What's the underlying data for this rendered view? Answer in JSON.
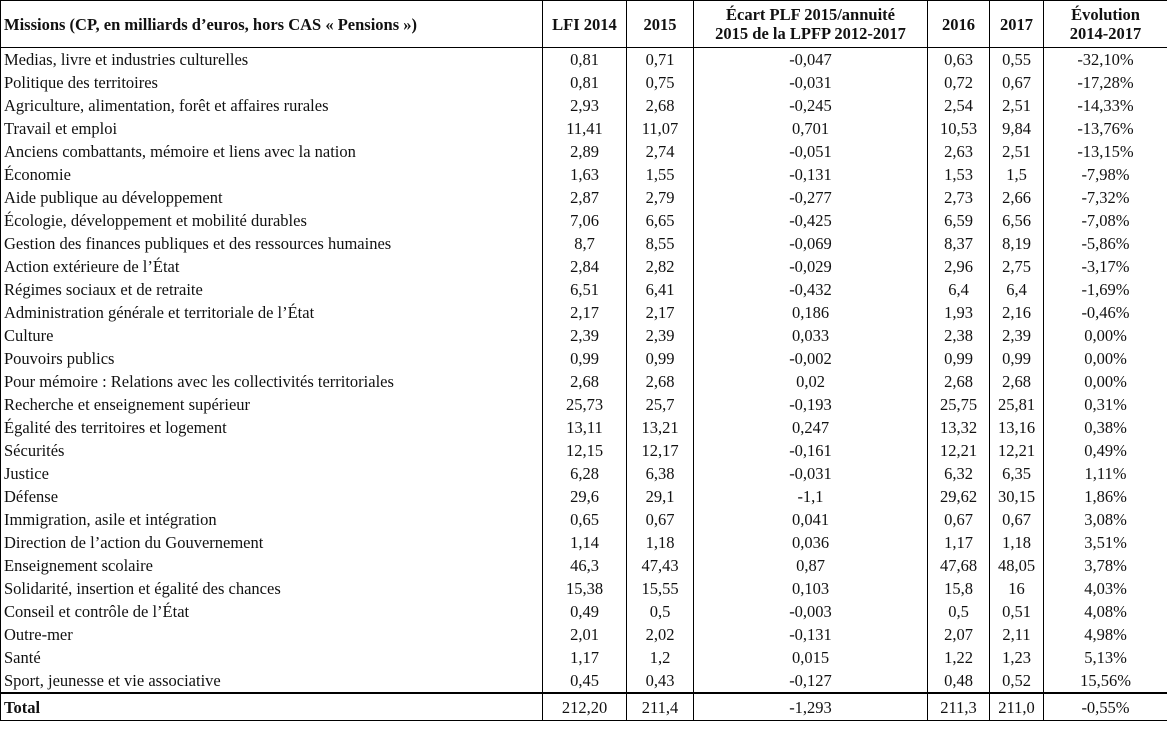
{
  "table": {
    "header": [
      "Missions (CP, en milliards d’euros, hors CAS « Pensions »)",
      "LFI 2014",
      "2015",
      "Écart PLF 2015/annuité\n2015 de la LPFP 2012-2017",
      "2016",
      "2017",
      "Évolution\n2014-2017"
    ],
    "rows": [
      [
        "Medias, livre et industries culturelles",
        "0,81",
        "0,71",
        "-0,047",
        "0,63",
        "0,55",
        "-32,10%"
      ],
      [
        "Politique des territoires",
        "0,81",
        "0,75",
        "-0,031",
        "0,72",
        "0,67",
        "-17,28%"
      ],
      [
        "Agriculture, alimentation, forêt et affaires rurales",
        "2,93",
        "2,68",
        "-0,245",
        "2,54",
        "2,51",
        "-14,33%"
      ],
      [
        "Travail et emploi",
        "11,41",
        "11,07",
        "0,701",
        "10,53",
        "9,84",
        "-13,76%"
      ],
      [
        "Anciens combattants, mémoire et liens avec la nation",
        "2,89",
        "2,74",
        "-0,051",
        "2,63",
        "2,51",
        "-13,15%"
      ],
      [
        "Économie",
        "1,63",
        "1,55",
        "-0,131",
        "1,53",
        "1,5",
        "-7,98%"
      ],
      [
        "Aide publique au développement",
        "2,87",
        "2,79",
        "-0,277",
        "2,73",
        "2,66",
        "-7,32%"
      ],
      [
        "Écologie, développement et mobilité durables",
        "7,06",
        "6,65",
        "-0,425",
        "6,59",
        "6,56",
        "-7,08%"
      ],
      [
        "Gestion des finances publiques et des ressources humaines",
        "8,7",
        "8,55",
        "-0,069",
        "8,37",
        "8,19",
        "-5,86%"
      ],
      [
        "Action extérieure de l’État",
        "2,84",
        "2,82",
        "-0,029",
        "2,96",
        "2,75",
        "-3,17%"
      ],
      [
        "Régimes sociaux et de retraite",
        "6,51",
        "6,41",
        "-0,432",
        "6,4",
        "6,4",
        "-1,69%"
      ],
      [
        "Administration générale et territoriale de l’État",
        "2,17",
        "2,17",
        "0,186",
        "1,93",
        "2,16",
        "-0,46%"
      ],
      [
        "Culture",
        "2,39",
        "2,39",
        "0,033",
        "2,38",
        "2,39",
        "0,00%"
      ],
      [
        "Pouvoirs publics",
        "0,99",
        "0,99",
        "-0,002",
        "0,99",
        "0,99",
        "0,00%"
      ],
      [
        "Pour mémoire : Relations avec les collectivités territoriales",
        "2,68",
        "2,68",
        "0,02",
        "2,68",
        "2,68",
        "0,00%"
      ],
      [
        "Recherche et enseignement supérieur",
        "25,73",
        "25,7",
        "-0,193",
        "25,75",
        "25,81",
        "0,31%"
      ],
      [
        "Égalité des territoires et logement",
        "13,11",
        "13,21",
        "0,247",
        "13,32",
        "13,16",
        "0,38%"
      ],
      [
        "Sécurités",
        "12,15",
        "12,17",
        "-0,161",
        "12,21",
        "12,21",
        "0,49%"
      ],
      [
        "Justice",
        "6,28",
        "6,38",
        "-0,031",
        "6,32",
        "6,35",
        "1,11%"
      ],
      [
        "Défense",
        "29,6",
        "29,1",
        "-1,1",
        "29,62",
        "30,15",
        "1,86%"
      ],
      [
        "Immigration, asile et intégration",
        "0,65",
        "0,67",
        "0,041",
        "0,67",
        "0,67",
        "3,08%"
      ],
      [
        "Direction de l’action du Gouvernement",
        "1,14",
        "1,18",
        "0,036",
        "1,17",
        "1,18",
        "3,51%"
      ],
      [
        "Enseignement scolaire",
        "46,3",
        "47,43",
        "0,87",
        "47,68",
        "48,05",
        "3,78%"
      ],
      [
        "Solidarité, insertion et égalité des chances",
        "15,38",
        "15,55",
        "0,103",
        "15,8",
        "16",
        "4,03%"
      ],
      [
        "Conseil et contrôle de l’État",
        "0,49",
        "0,5",
        "-0,003",
        "0,5",
        "0,51",
        "4,08%"
      ],
      [
        "Outre-mer",
        "2,01",
        "2,02",
        "-0,131",
        "2,07",
        "2,11",
        "4,98%"
      ],
      [
        "Santé",
        "1,17",
        "1,2",
        "0,015",
        "1,22",
        "1,23",
        "5,13%"
      ],
      [
        "Sport, jeunesse et vie associative",
        "0,45",
        "0,43",
        "-0,127",
        "0,48",
        "0,52",
        "15,56%"
      ]
    ],
    "total": [
      "Total",
      "212,20",
      "211,4",
      "-1,293",
      "211,3",
      "211,0",
      "-0,55%"
    ]
  }
}
